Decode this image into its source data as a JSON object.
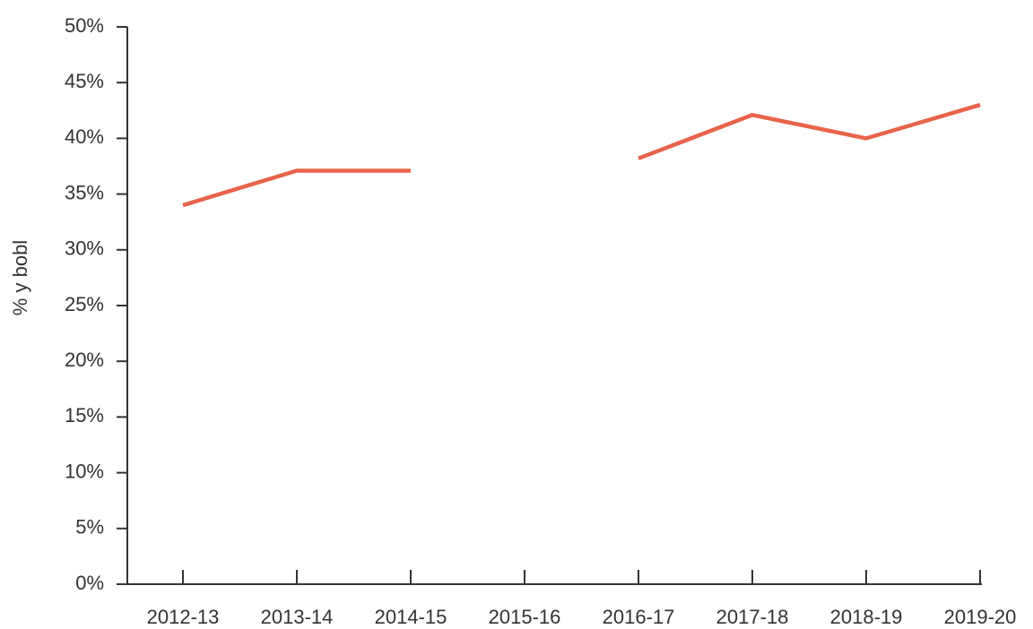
{
  "chart_data": {
    "type": "line",
    "ylabel": "% y bobl",
    "categories": [
      "2012-13",
      "2013-14",
      "2014-15",
      "2015-16",
      "2016-17",
      "2017-18",
      "2018-19",
      "2019-20"
    ],
    "series": [
      {
        "color": "#e8634b",
        "values": [
          34,
          37.1,
          37.1,
          null,
          38.2,
          42.1,
          40,
          43
        ]
      }
    ],
    "ylim": [
      0,
      50
    ],
    "yticks": [
      {
        "value": 0,
        "label": "0%"
      },
      {
        "value": 5,
        "label": "5%"
      },
      {
        "value": 10,
        "label": "10%"
      },
      {
        "value": 15,
        "label": "15%"
      },
      {
        "value": 20,
        "label": "20%"
      },
      {
        "value": 25,
        "label": "25%"
      },
      {
        "value": 30,
        "label": "30%"
      },
      {
        "value": 35,
        "label": "35%"
      },
      {
        "value": 40,
        "label": "40%"
      },
      {
        "value": 45,
        "label": "45%"
      },
      {
        "value": 50,
        "label": "50%"
      }
    ],
    "grid": false
  }
}
